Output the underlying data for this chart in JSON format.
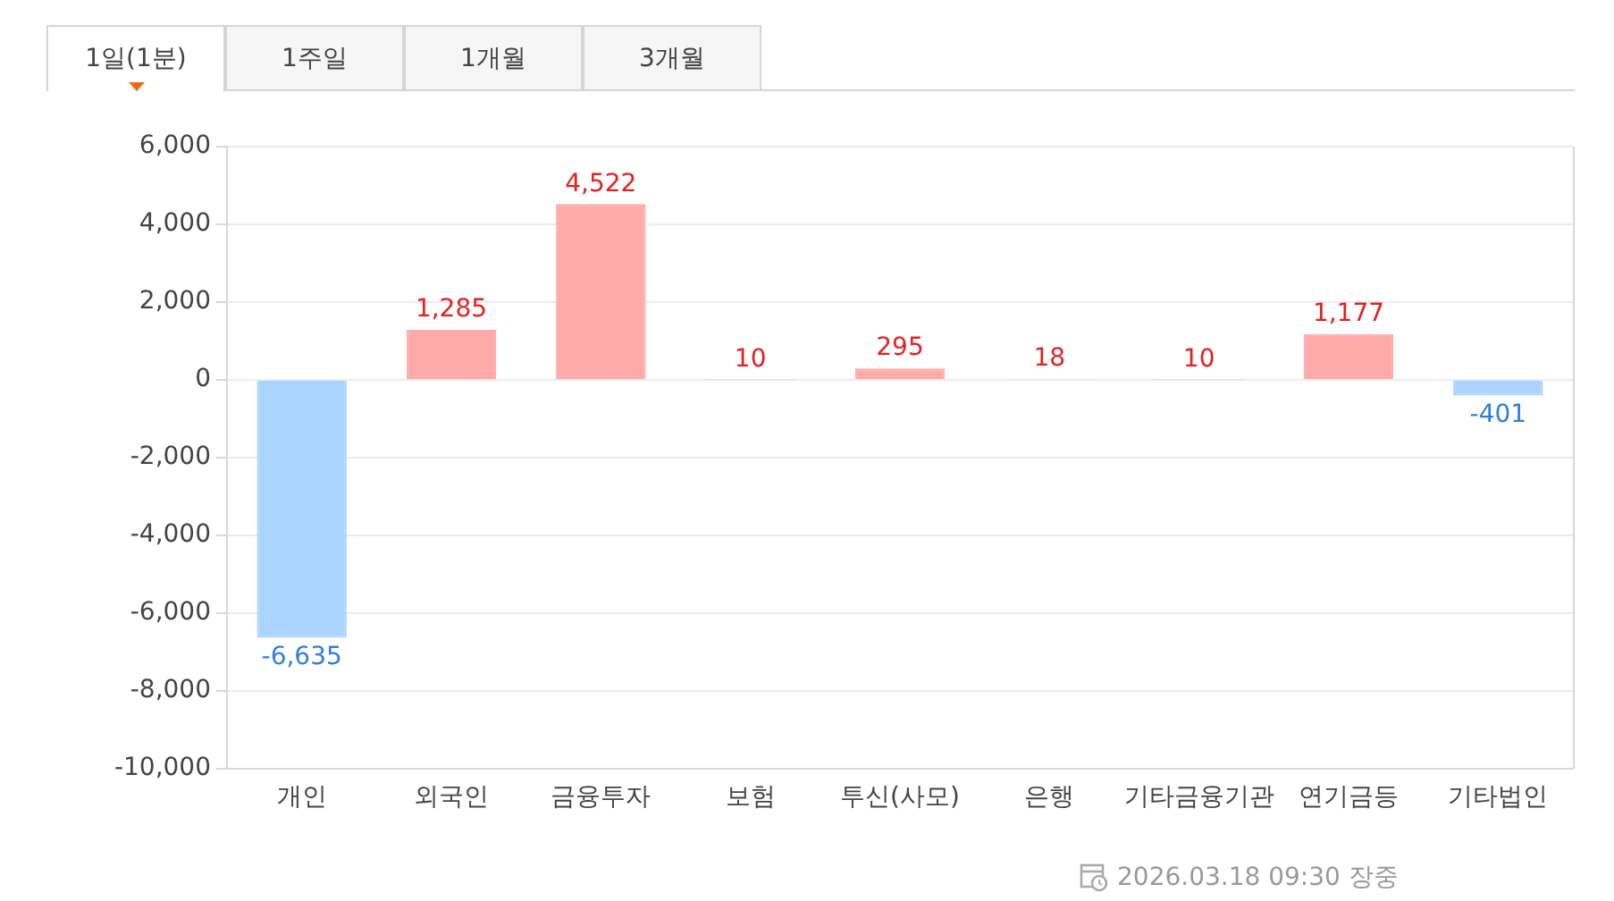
{
  "chart_data": {
    "type": "bar",
    "categories": [
      "개인",
      "외국인",
      "금융투자",
      "보험",
      "투신(사모)",
      "은행",
      "기타금융기관",
      "연기금등",
      "기타법인"
    ],
    "values": [
      -6635,
      1285,
      4522,
      10,
      295,
      18,
      10,
      1177,
      -401
    ],
    "colors": [
      "#aad4ff",
      "#ffaaaa",
      "#ffaaaa",
      "#ffaaaa",
      "#ffaaaa",
      "#ffaaaa",
      "#ffaaaa",
      "#ffaaaa",
      "#aad4ff"
    ],
    "value_labels": [
      "-6,635",
      "1,285",
      "4,522",
      "10",
      "295",
      "18",
      "10",
      "1,177",
      "-401"
    ],
    "ylim": [
      -10000,
      6000
    ],
    "yticks": [
      {
        "value": -10000,
        "label": "-10,000"
      },
      {
        "value": -8000,
        "label": "-8,000"
      },
      {
        "value": -6000,
        "label": "-6,000"
      },
      {
        "value": -4000,
        "label": "-4,000"
      },
      {
        "value": -2000,
        "label": "-2,000"
      },
      0,
      {
        "value": 2000,
        "label": "2,000"
      },
      {
        "value": 4000,
        "label": "4,000"
      },
      {
        "value": 6000,
        "label": "6,000"
      }
    ],
    "grid": "y",
    "legend": false,
    "annotations": [
      "1일(1분)",
      "1주일",
      "1개월",
      "3개월",
      "2026.03.18 09:30 장중"
    ]
  }
}
